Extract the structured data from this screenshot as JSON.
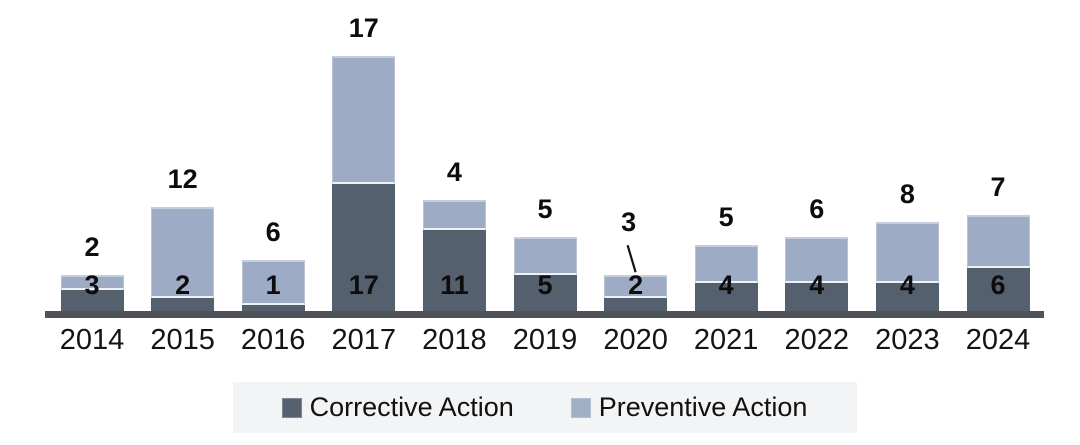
{
  "chart_data": {
    "type": "bar",
    "stacked": true,
    "title": "",
    "xlabel": "",
    "ylabel": "",
    "categories": [
      "2014",
      "2015",
      "2016",
      "2017",
      "2018",
      "2019",
      "2020",
      "2021",
      "2022",
      "2023",
      "2024"
    ],
    "series": [
      {
        "name": "Corrective Action",
        "color": "#55606f",
        "values": [
          3,
          2,
          1,
          17,
          11,
          5,
          2,
          4,
          4,
          4,
          6
        ]
      },
      {
        "name": "Preventive Action",
        "color": "#9dacc4",
        "values": [
          2,
          12,
          6,
          17,
          4,
          5,
          3,
          5,
          6,
          8,
          7
        ]
      }
    ],
    "totals": [
      5,
      14,
      7,
      34,
      15,
      10,
      5,
      9,
      10,
      12,
      13
    ],
    "ylim": [
      0,
      34
    ],
    "grid": false,
    "legend_position": "bottom",
    "data_labels": {
      "corrective_inside": true,
      "preventive_above_bar": true,
      "callout": {
        "category": "2020",
        "series": "Preventive Action",
        "value": 3
      }
    },
    "axis_color": "#515257"
  },
  "legend": {
    "items": [
      {
        "label": "Corrective Action",
        "color": "#566170"
      },
      {
        "label": "Preventive Action",
        "color": "#a2b0c6"
      }
    ]
  }
}
